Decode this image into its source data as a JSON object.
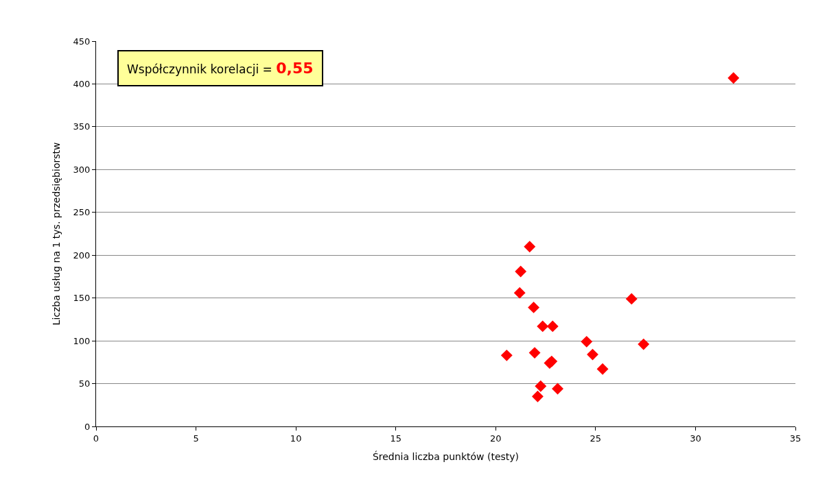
{
  "chart_data": {
    "type": "scatter",
    "xlabel": "Średnia liczba punktów (testy)",
    "ylabel": "Liczba usług na 1 tys. przedsiębiorstw",
    "annotations": [
      "Współczynnik korelacji = 0,55"
    ],
    "series": [
      {
        "color": "#ff0000",
        "x": [
          31.9,
          21.7,
          21.25,
          21.2,
          21.9,
          22.35,
          22.85,
          26.8,
          24.55,
          27.4,
          20.55,
          21.95,
          24.85,
          22.7,
          22.8,
          25.35,
          22.25,
          23.1,
          22.1
        ],
        "values": [
          407,
          210,
          181,
          156,
          139,
          117,
          117,
          149,
          99,
          96,
          83,
          86,
          84,
          74,
          76,
          67,
          47,
          44,
          35
        ]
      }
    ],
    "xlim": [
      0,
      35
    ],
    "xticks": [
      0,
      5,
      10,
      15,
      20,
      25,
      30,
      35
    ],
    "ylim": [
      0,
      450
    ],
    "yticks": [
      0,
      50,
      100,
      150,
      200,
      250,
      300,
      350,
      400,
      450
    ],
    "grid": "y",
    "marker": "diamond"
  }
}
